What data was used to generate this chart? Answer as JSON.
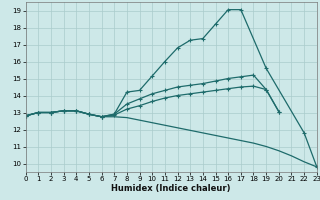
{
  "xlabel": "Humidex (Indice chaleur)",
  "xlim": [
    0,
    23
  ],
  "ylim": [
    9.5,
    19.5
  ],
  "xticks": [
    0,
    1,
    2,
    3,
    4,
    5,
    6,
    7,
    8,
    9,
    10,
    11,
    12,
    13,
    14,
    15,
    16,
    17,
    18,
    19,
    20,
    21,
    22,
    23
  ],
  "yticks": [
    10,
    11,
    12,
    13,
    14,
    15,
    16,
    17,
    18,
    19
  ],
  "background_color": "#cde8e8",
  "grid_color": "#aacccc",
  "line_color": "#1e6b6b",
  "line1_x": [
    0,
    1,
    2,
    3,
    4,
    5,
    6,
    7,
    8,
    9,
    10,
    11,
    12,
    13,
    14,
    15,
    16,
    17,
    19,
    22,
    23
  ],
  "line1_y": [
    12.8,
    13.0,
    13.0,
    13.1,
    13.1,
    12.9,
    12.75,
    12.9,
    14.2,
    14.3,
    15.15,
    16.0,
    16.8,
    17.25,
    17.35,
    18.2,
    19.05,
    19.05,
    15.6,
    11.8,
    9.8
  ],
  "line2_x": [
    0,
    1,
    2,
    3,
    4,
    5,
    6,
    7,
    8,
    9,
    10,
    11,
    12,
    13,
    14,
    15,
    16,
    17,
    18,
    19,
    20
  ],
  "line2_y": [
    12.8,
    13.0,
    13.0,
    13.1,
    13.1,
    12.9,
    12.75,
    12.9,
    13.5,
    13.8,
    14.1,
    14.3,
    14.5,
    14.6,
    14.7,
    14.85,
    15.0,
    15.1,
    15.2,
    14.35,
    13.05
  ],
  "line3_x": [
    0,
    1,
    2,
    3,
    4,
    5,
    6,
    7,
    8,
    9,
    10,
    11,
    12,
    13,
    14,
    15,
    16,
    17,
    18,
    19,
    20
  ],
  "line3_y": [
    12.8,
    13.0,
    13.0,
    13.1,
    13.1,
    12.9,
    12.75,
    12.85,
    13.2,
    13.4,
    13.65,
    13.85,
    14.0,
    14.1,
    14.2,
    14.3,
    14.4,
    14.5,
    14.55,
    14.35,
    13.05
  ],
  "line4_x": [
    0,
    1,
    2,
    3,
    4,
    5,
    6,
    7,
    8,
    9,
    10,
    11,
    12,
    13,
    14,
    15,
    16,
    17,
    18,
    19,
    20,
    21,
    22,
    23
  ],
  "line4_y": [
    12.8,
    13.0,
    13.0,
    13.1,
    13.1,
    12.9,
    12.75,
    12.75,
    12.7,
    12.55,
    12.4,
    12.25,
    12.1,
    11.95,
    11.8,
    11.65,
    11.5,
    11.35,
    11.2,
    11.0,
    10.75,
    10.45,
    10.1,
    9.8
  ]
}
